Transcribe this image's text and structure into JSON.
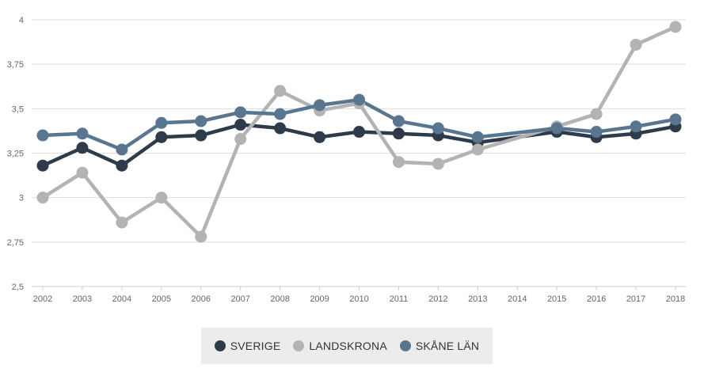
{
  "chart_data": {
    "type": "line",
    "title": "",
    "xlabel": "",
    "ylabel": "",
    "x": [
      "2002",
      "2003",
      "2004",
      "2005",
      "2006",
      "2007",
      "2008",
      "2009",
      "2010",
      "2011",
      "2012",
      "2013",
      "2014",
      "2015",
      "2016",
      "2017",
      "2018"
    ],
    "ylim": [
      2.5,
      4
    ],
    "yticks": [
      "2,5",
      "2,75",
      "3",
      "3,25",
      "3,5",
      "3,75",
      "4"
    ],
    "ytick_values": [
      2.5,
      2.75,
      3,
      3.25,
      3.5,
      3.75,
      4
    ],
    "grid": true,
    "legend_position": "bottom",
    "series": [
      {
        "name": "SVERIGE",
        "color": "#2e3b4a",
        "values": [
          3.18,
          3.28,
          3.18,
          3.34,
          3.35,
          3.41,
          3.39,
          3.34,
          3.37,
          3.36,
          3.35,
          3.31,
          null,
          3.37,
          3.34,
          3.36,
          3.4
        ]
      },
      {
        "name": "LANDSKRONA",
        "color": "#b3b3b3",
        "values": [
          3.0,
          3.14,
          2.86,
          3.0,
          2.78,
          3.33,
          3.6,
          3.49,
          3.53,
          3.2,
          3.19,
          3.27,
          null,
          3.4,
          3.47,
          3.86,
          3.96
        ]
      },
      {
        "name": "SKÅNE LÄN",
        "color": "#587690",
        "values": [
          3.35,
          3.36,
          3.27,
          3.42,
          3.43,
          3.48,
          3.47,
          3.52,
          3.55,
          3.43,
          3.39,
          3.34,
          null,
          3.39,
          3.37,
          3.4,
          3.44
        ]
      }
    ]
  }
}
